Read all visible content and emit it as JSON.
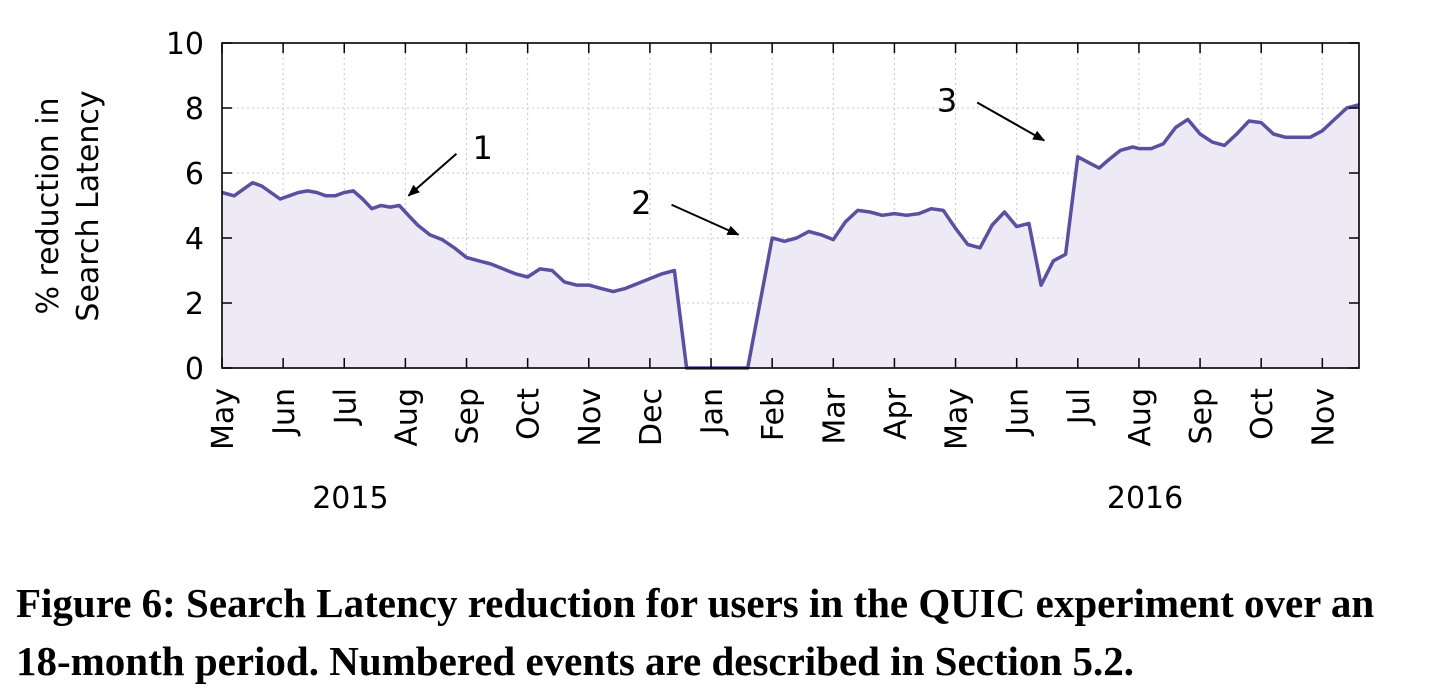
{
  "chart_data": {
    "type": "area",
    "ylabel_lines": [
      "% reduction in",
      "Search Latency"
    ],
    "ylim": [
      0,
      10
    ],
    "yticks": [
      0,
      2,
      4,
      6,
      8,
      10
    ],
    "x_unit": "months since May 2015",
    "xlim": [
      0,
      18.6
    ],
    "xtick_labels": [
      "May",
      "Jun",
      "Jul",
      "Aug",
      "Sep",
      "Oct",
      "Nov",
      "Dec",
      "Jan",
      "Feb",
      "Mar",
      "Apr",
      "May",
      "Jun",
      "Jul",
      "Aug",
      "Sep",
      "Oct",
      "Nov"
    ],
    "year_labels": [
      {
        "label": "2015",
        "at_month": 2.1
      },
      {
        "label": "2016",
        "at_month": 15.1
      }
    ],
    "grid": true,
    "series": [
      {
        "name": "% reduction in Search Latency",
        "color": "#5b4f9f",
        "fill": "#edeaf6",
        "x": [
          0,
          0.2,
          0.35,
          0.5,
          0.65,
          0.8,
          0.95,
          1.1,
          1.25,
          1.4,
          1.55,
          1.7,
          1.85,
          2.0,
          2.15,
          2.3,
          2.45,
          2.6,
          2.75,
          2.9,
          3.05,
          3.2,
          3.4,
          3.6,
          3.8,
          4.0,
          4.2,
          4.4,
          4.6,
          4.8,
          5.0,
          5.2,
          5.4,
          5.6,
          5.8,
          6.0,
          6.2,
          6.4,
          6.6,
          6.8,
          7.0,
          7.2,
          7.4,
          7.6,
          8.6,
          9.0,
          9.1,
          9.2,
          9.4,
          9.6,
          9.8,
          10.0,
          10.2,
          10.4,
          10.6,
          10.8,
          11.0,
          11.2,
          11.4,
          11.6,
          11.8,
          12.0,
          12.2,
          12.4,
          12.6,
          12.8,
          13.0,
          13.2,
          13.4,
          13.6,
          13.8,
          14.0,
          14.2,
          14.35,
          14.5,
          14.7,
          14.9,
          15.0,
          15.2,
          15.4,
          15.6,
          15.8,
          16.0,
          16.2,
          16.4,
          16.6,
          16.8,
          17.0,
          17.2,
          17.4,
          17.6,
          17.8,
          18.0,
          18.2,
          18.4,
          18.6
        ],
        "values": [
          5.4,
          5.3,
          5.5,
          5.7,
          5.6,
          5.4,
          5.2,
          5.3,
          5.4,
          5.45,
          5.4,
          5.3,
          5.3,
          5.4,
          5.45,
          5.2,
          4.9,
          5.0,
          4.95,
          5.0,
          4.7,
          4.4,
          4.1,
          3.95,
          3.7,
          3.4,
          3.3,
          3.2,
          3.05,
          2.9,
          2.8,
          3.05,
          3.0,
          2.65,
          2.55,
          2.55,
          2.45,
          2.35,
          2.45,
          2.6,
          2.75,
          2.9,
          3.0,
          0.0,
          0.0,
          4.0,
          3.95,
          3.9,
          4.0,
          4.2,
          4.1,
          3.95,
          4.5,
          4.85,
          4.8,
          4.7,
          4.75,
          4.7,
          4.75,
          4.9,
          4.85,
          4.3,
          3.8,
          3.7,
          4.4,
          4.8,
          4.35,
          4.45,
          2.55,
          3.3,
          3.5,
          6.5,
          6.3,
          6.15,
          6.4,
          6.7,
          6.8,
          6.75,
          6.75,
          6.9,
          7.4,
          7.65,
          7.2,
          6.95,
          6.85,
          7.2,
          7.6,
          7.55,
          7.2,
          7.1,
          7.1,
          7.1,
          7.3,
          7.65,
          8.0,
          8.1
        ]
      }
    ],
    "annotations": [
      {
        "label": "1",
        "arrow_to": {
          "x": 3.05,
          "y": 5.3
        }
      },
      {
        "label": "2",
        "arrow_to": {
          "x": 8.45,
          "y": 4.1
        }
      },
      {
        "label": "3",
        "arrow_to": {
          "x": 13.45,
          "y": 7.0
        }
      }
    ]
  },
  "caption": "Figure 6: Search Latency reduction for users in the QUIC experiment over an 18-month period. Numbered events are described in Section 5.2."
}
